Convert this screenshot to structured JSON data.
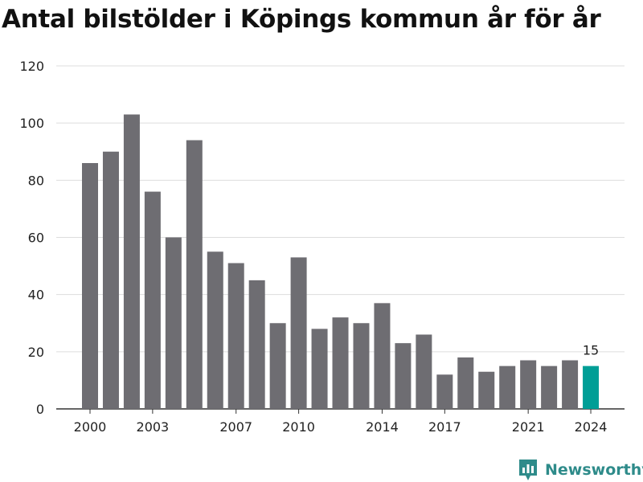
{
  "title": "Antal bilstölder i Köpings kommun år för år",
  "brand": {
    "name": "Newsworthy",
    "color": "#2e8b8a",
    "icon": "bar-chart-logo-icon"
  },
  "colors": {
    "bar": "#6e6d72",
    "highlight": "#009e96",
    "grid": "#dddddd",
    "axis": "#333333",
    "text": "#222222"
  },
  "chart_data": {
    "type": "bar",
    "title": "Antal bilstölder i Köpings kommun år för år",
    "xlabel": "",
    "ylabel": "",
    "categories": [
      "2000",
      "2001",
      "2002",
      "2003",
      "2004",
      "2005",
      "2006",
      "2007",
      "2008",
      "2009",
      "2010",
      "2011",
      "2012",
      "2013",
      "2014",
      "2015",
      "2016",
      "2017",
      "2018",
      "2019",
      "2020",
      "2021",
      "2022",
      "2023",
      "2024"
    ],
    "values": [
      86,
      90,
      103,
      76,
      60,
      94,
      55,
      51,
      45,
      30,
      53,
      28,
      32,
      30,
      37,
      23,
      26,
      12,
      18,
      13,
      15,
      17,
      15,
      17,
      15
    ],
    "x_tick_labels": [
      "2000",
      "2003",
      "2007",
      "2010",
      "2014",
      "2017",
      "2021",
      "2024"
    ],
    "ylim": [
      0,
      120
    ],
    "y_ticks": [
      0,
      20,
      40,
      60,
      80,
      100,
      120
    ],
    "grid": true,
    "highlight": {
      "category": "2024",
      "label": "15"
    }
  }
}
